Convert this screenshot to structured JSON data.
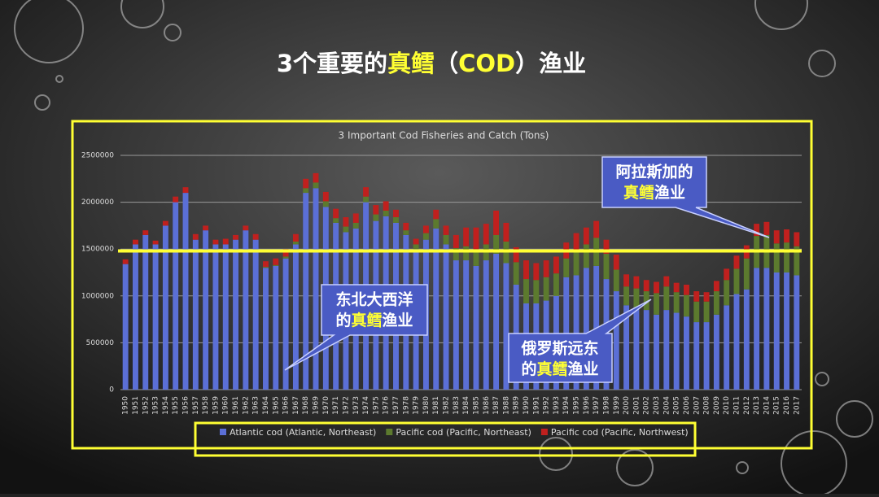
{
  "slide_title": {
    "pre": "3个重要的",
    "highlight1": "真鳕",
    "mid": "（",
    "highlight2": "COD",
    "post": "）渔业"
  },
  "callouts": [
    {
      "line1": "阿拉斯加的",
      "highlight": "真鳕",
      "rest": "渔业"
    },
    {
      "line1": "东北大西洋",
      "line2_pre": "的",
      "highlight": "真鳕",
      "rest": "渔业"
    },
    {
      "line1": "俄罗斯远东",
      "line2_pre": "的",
      "highlight": "真鳕",
      "rest": "渔业"
    }
  ],
  "chart_data": {
    "type": "stacked_bar",
    "title": "3 Important Cod Fisheries and Catch (Tons)",
    "categories": [
      "1950",
      "1951",
      "1952",
      "1953",
      "1954",
      "1955",
      "1956",
      "1957",
      "1958",
      "1959",
      "1960",
      "1961",
      "1962",
      "1963",
      "1964",
      "1965",
      "1966",
      "1967",
      "1968",
      "1969",
      "1970",
      "1971",
      "1972",
      "1973",
      "1974",
      "1975",
      "1976",
      "1977",
      "1978",
      "1979",
      "1980",
      "1981",
      "1982",
      "1983",
      "1984",
      "1985",
      "1986",
      "1987",
      "1988",
      "1989",
      "1990",
      "1991",
      "1992",
      "1993",
      "1994",
      "1995",
      "1996",
      "1997",
      "1998",
      "1999",
      "2000",
      "2001",
      "2002",
      "2003",
      "2004",
      "2005",
      "2006",
      "2007",
      "2008",
      "2009",
      "2010",
      "2011",
      "2012",
      "2013",
      "2014",
      "2015",
      "2016",
      "2017"
    ],
    "series": [
      {
        "name": "Atlantic cod (Atlantic, Northeast)",
        "color": "#5b6fd6",
        "values": [
          1340000,
          1550000,
          1650000,
          1550000,
          1750000,
          2000000,
          2100000,
          1600000,
          1700000,
          1550000,
          1550000,
          1600000,
          1700000,
          1600000,
          1300000,
          1320000,
          1400000,
          1550000,
          2100000,
          2150000,
          1950000,
          1780000,
          1680000,
          1720000,
          2000000,
          1800000,
          1850000,
          1780000,
          1650000,
          1500000,
          1600000,
          1720000,
          1550000,
          1380000,
          1380000,
          1320000,
          1380000,
          1450000,
          1350000,
          1120000,
          920000,
          920000,
          950000,
          1000000,
          1200000,
          1220000,
          1300000,
          1320000,
          1180000,
          1050000,
          900000,
          880000,
          850000,
          800000,
          850000,
          820000,
          780000,
          720000,
          720000,
          800000,
          900000,
          1020000,
          1070000,
          1300000,
          1300000,
          1250000,
          1250000,
          1220000
        ]
      },
      {
        "name": "Pacific cod (Pacific, Northeast)",
        "color": "#5c7a2e",
        "values": [
          0,
          0,
          0,
          0,
          0,
          0,
          0,
          0,
          0,
          0,
          0,
          0,
          0,
          0,
          10000,
          10000,
          20000,
          30000,
          50000,
          60000,
          60000,
          50000,
          60000,
          60000,
          60000,
          70000,
          60000,
          60000,
          50000,
          50000,
          70000,
          100000,
          100000,
          130000,
          150000,
          180000,
          170000,
          200000,
          230000,
          240000,
          260000,
          250000,
          250000,
          240000,
          200000,
          250000,
          250000,
          300000,
          270000,
          230000,
          200000,
          200000,
          200000,
          230000,
          250000,
          220000,
          230000,
          220000,
          220000,
          250000,
          270000,
          270000,
          330000,
          340000,
          350000,
          310000,
          320000,
          310000
        ]
      },
      {
        "name": "Pacific cod (Pacific, Northwest)",
        "color": "#c0201e",
        "values": [
          50000,
          50000,
          50000,
          40000,
          50000,
          60000,
          60000,
          60000,
          50000,
          50000,
          60000,
          50000,
          50000,
          60000,
          60000,
          70000,
          80000,
          80000,
          100000,
          100000,
          100000,
          100000,
          100000,
          100000,
          100000,
          100000,
          100000,
          80000,
          80000,
          60000,
          80000,
          100000,
          100000,
          140000,
          200000,
          230000,
          220000,
          260000,
          200000,
          160000,
          200000,
          180000,
          180000,
          180000,
          170000,
          200000,
          180000,
          180000,
          150000,
          160000,
          130000,
          130000,
          120000,
          120000,
          110000,
          100000,
          110000,
          110000,
          100000,
          110000,
          120000,
          140000,
          140000,
          130000,
          140000,
          140000,
          140000,
          150000
        ]
      }
    ],
    "ylim": [
      0,
      2500000
    ],
    "yticks": [
      0,
      500000,
      1000000,
      1500000,
      2000000,
      2500000
    ],
    "grid": true,
    "reference_line": {
      "value": 1480000,
      "color": "#ffff33"
    }
  }
}
